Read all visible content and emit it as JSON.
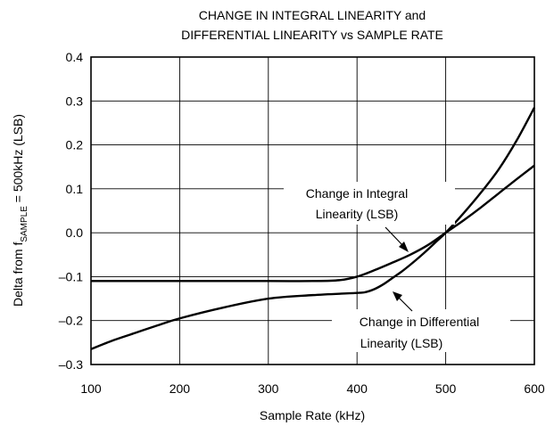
{
  "chart_data": {
    "type": "line",
    "title_line1": "CHANGE IN INTEGRAL LINEARITY and",
    "title_line2": "DIFFERENTIAL LINEARITY vs SAMPLE RATE",
    "xlabel": "Sample Rate (kHz)",
    "ylabel_prefix": "Delta from f",
    "ylabel_sub": "SAMPLE",
    "ylabel_suffix": " = 500kHz (LSB)",
    "xlim": [
      100,
      600
    ],
    "ylim": [
      -0.3,
      0.4
    ],
    "grid": true,
    "x_ticks": [
      100,
      200,
      300,
      400,
      500,
      600
    ],
    "x_tick_labels": [
      "100",
      "200",
      "300",
      "400",
      "500",
      "600"
    ],
    "y_ticks": [
      -0.3,
      -0.2,
      -0.1,
      0.0,
      0.1,
      0.2,
      0.3,
      0.4
    ],
    "y_tick_labels": [
      "–0.3",
      "–0.2",
      "–0.1",
      "0.0",
      "0.1",
      "0.2",
      "0.3",
      "0.4"
    ],
    "series": [
      {
        "name_line1": "Change in Integral",
        "name_line2": "Linearity (LSB)",
        "x": [
          100,
          200,
          300,
          350,
          380,
          400,
          420,
          440,
          460,
          480,
          500,
          520,
          540,
          560,
          580,
          600
        ],
        "y": [
          -0.11,
          -0.11,
          -0.11,
          -0.11,
          -0.108,
          -0.1,
          -0.085,
          -0.068,
          -0.05,
          -0.028,
          0.0,
          0.028,
          0.058,
          0.09,
          0.122,
          0.153
        ]
      },
      {
        "name_line1": "Change in Differential",
        "name_line2": "Linearity (LSB)",
        "x": [
          100,
          125,
          150,
          175,
          200,
          250,
          300,
          350,
          400,
          410,
          420,
          430,
          440,
          450,
          460,
          470,
          480,
          490,
          500,
          520,
          540,
          560,
          580,
          600
        ],
        "y": [
          -0.265,
          -0.245,
          -0.228,
          -0.211,
          -0.195,
          -0.17,
          -0.15,
          -0.142,
          -0.137,
          -0.135,
          -0.128,
          -0.117,
          -0.103,
          -0.089,
          -0.073,
          -0.056,
          -0.038,
          -0.019,
          0.0,
          0.044,
          0.092,
          0.145,
          0.21,
          0.285
        ]
      }
    ]
  }
}
